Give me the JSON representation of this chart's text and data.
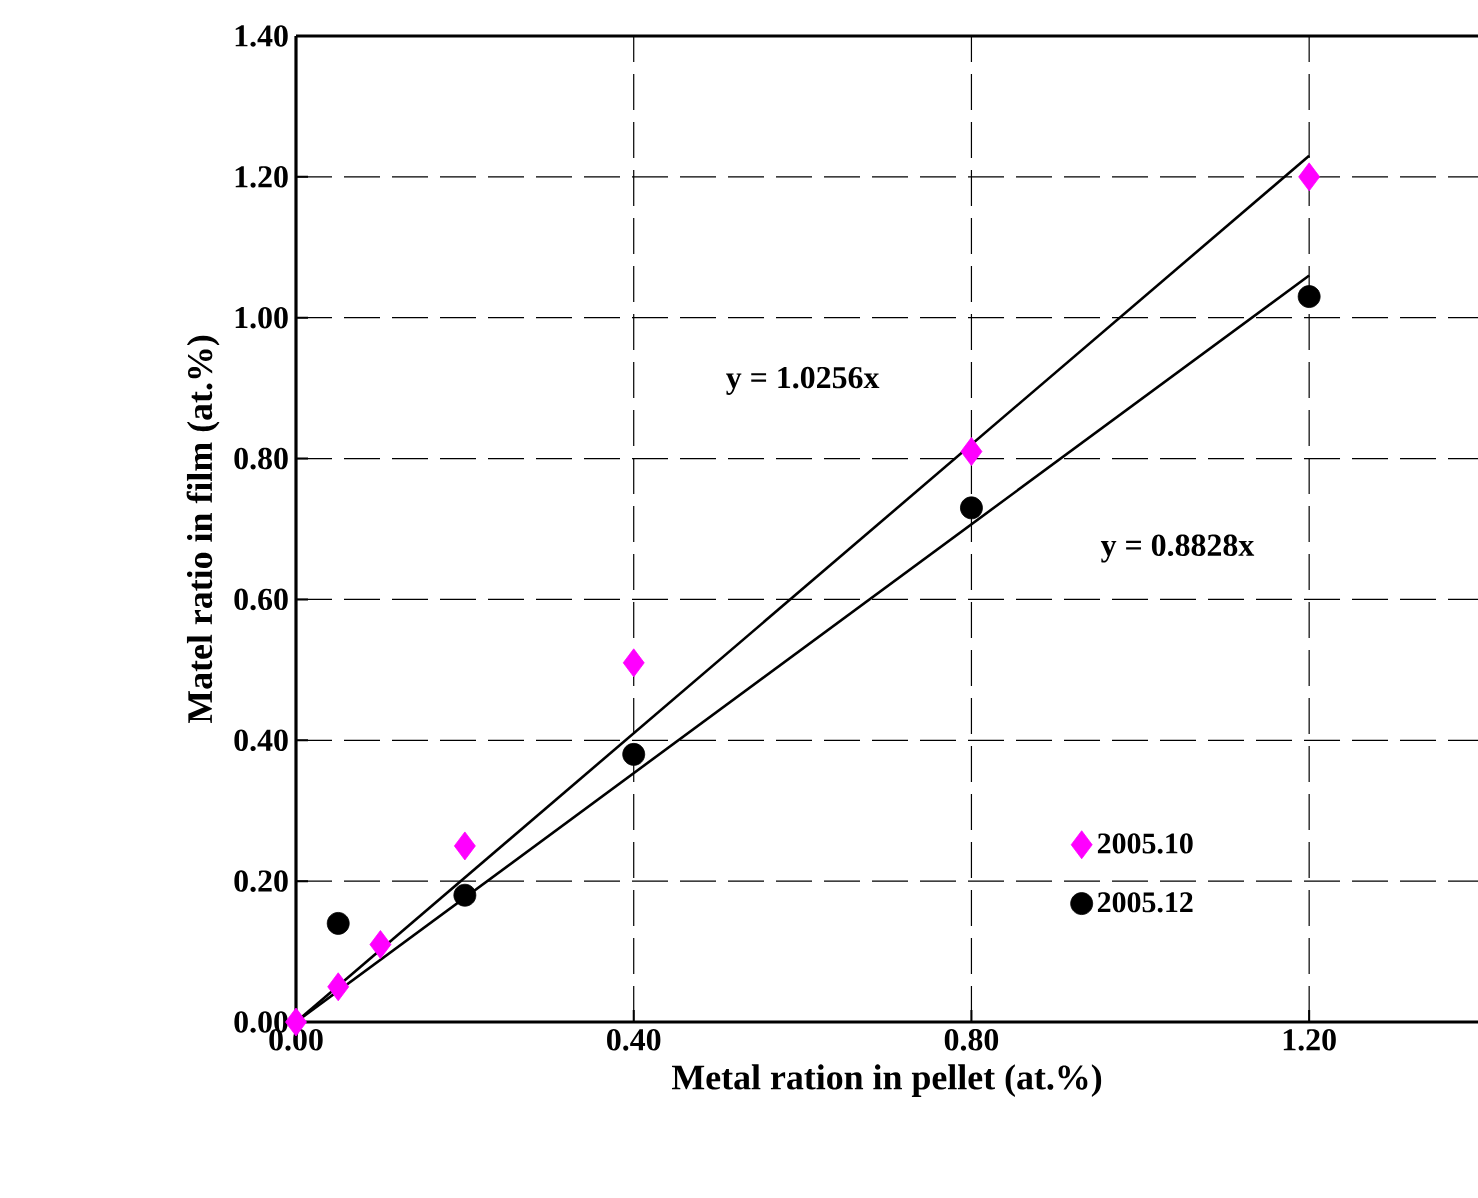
{
  "chart_data": {
    "type": "scatter",
    "xlabel": "Metal ration in pellet (at.%)",
    "ylabel": "Matel ratio in film (at.%)",
    "xlim": [
      0,
      1.4
    ],
    "ylim": [
      0,
      1.4
    ],
    "xticks": [
      {
        "value": 0,
        "label": "0.00"
      },
      {
        "value": 0.4,
        "label": "0.40"
      },
      {
        "value": 0.8,
        "label": "0.80"
      },
      {
        "value": 1.2,
        "label": "1.20"
      }
    ],
    "yticks": [
      {
        "value": 0,
        "label": "0.00"
      },
      {
        "value": 0.2,
        "label": "0.20"
      },
      {
        "value": 0.4,
        "label": "0.40"
      },
      {
        "value": 0.6,
        "label": "0.60"
      },
      {
        "value": 0.8,
        "label": "0.80"
      },
      {
        "value": 1.0,
        "label": "1.00"
      },
      {
        "value": 1.2,
        "label": "1.20"
      },
      {
        "value": 1.4,
        "label": "1.40"
      }
    ],
    "grid": true,
    "legend": "bottom right",
    "series": [
      {
        "name": "2005.10",
        "marker": "diamond",
        "color": "#ff00ff",
        "x": [
          0,
          0.05,
          0.1,
          0.2,
          0.4,
          0.8,
          1.2
        ],
        "values": [
          0,
          0.05,
          0.11,
          0.25,
          0.51,
          0.81,
          1.2
        ]
      },
      {
        "name": "2005.12",
        "marker": "circle",
        "color": "#000000",
        "x": [
          0.05,
          0.2,
          0.4,
          0.8,
          1.2
        ],
        "values": [
          0.14,
          0.18,
          0.38,
          0.73,
          1.03
        ]
      },
      {
        "type": "line",
        "color": "#000000",
        "x": [
          0,
          1.2
        ],
        "values": [
          0,
          1.23
        ]
      },
      {
        "type": "line",
        "color": "#000000",
        "x": [
          0,
          1.2
        ],
        "values": [
          0,
          1.06
        ]
      }
    ],
    "annotations": [
      "y = 1.0256x",
      "y = 0.8828x"
    ]
  }
}
